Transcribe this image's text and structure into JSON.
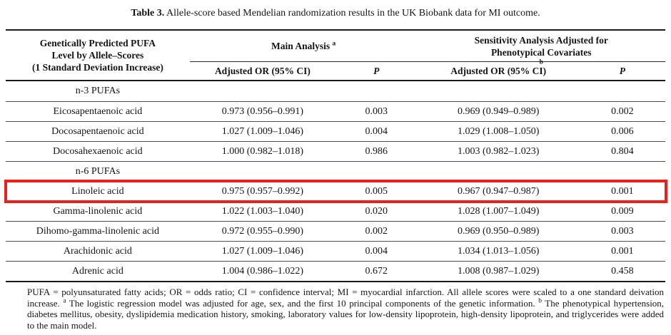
{
  "title": {
    "prefix": "Table 3.",
    "text": "Allele-score based Mendelian randomization results in the UK Biobank data for MI outcome."
  },
  "header": {
    "exposure": "Genetically Predicted PUFA\nLevel by Allele–Scores\n(1 Standard Deviation Increase)",
    "main_group": {
      "label": "Main Analysis",
      "sup": "a"
    },
    "sens_group": {
      "label": "Sensitivity Analysis Adjusted for\nPhenotypical Covariates",
      "sup": "b"
    },
    "or_label": "Adjusted OR (95% CI)",
    "p_label": "P"
  },
  "rows": [
    {
      "type": "section",
      "label": "n-3 PUFAs"
    },
    {
      "type": "data",
      "label": "Eicosapentaenoic acid",
      "or1": "0.973 (0.956–0.991)",
      "p1": "0.003",
      "or2": "0.969 (0.949–0.989)",
      "p2": "0.002"
    },
    {
      "type": "data",
      "label": "Docosapentaenoic acid",
      "or1": "1.027 (1.009–1.046)",
      "p1": "0.004",
      "or2": "1.029 (1.008–1.050)",
      "p2": "0.006"
    },
    {
      "type": "data",
      "label": "Docosahexaenoic acid",
      "or1": "1.000 (0.982–1.018)",
      "p1": "0.986",
      "or2": "1.003 (0.982–1.023)",
      "p2": "0.804"
    },
    {
      "type": "section",
      "label": "n-6 PUFAs"
    },
    {
      "type": "data",
      "label": "Linoleic acid",
      "highlighted": true,
      "or1": "0.975 (0.957–0.992)",
      "p1": "0.005",
      "or2": "0.967 (0.947–0.987)",
      "p2": "0.001"
    },
    {
      "type": "data",
      "label": "Gamma-linolenic acid",
      "or1": "1.022 (1.003–1.040)",
      "p1": "0.020",
      "or2": "1.028 (1.007–1.049)",
      "p2": "0.009"
    },
    {
      "type": "data",
      "label": "Dihomo-gamma-linolenic acid",
      "or1": "0.972 (0.955–0.990)",
      "p1": "0.002",
      "or2": "0.969 (0.950–0.989)",
      "p2": "0.003"
    },
    {
      "type": "data",
      "label": "Arachidonic acid",
      "or1": "1.027 (1.009–1.046)",
      "p1": "0.004",
      "or2": "1.034 (1.013–1.056)",
      "p2": "0.001"
    },
    {
      "type": "data",
      "label": "Adrenic acid",
      "or1": "1.004 (0.986–1.022)",
      "p1": "0.672",
      "or2": "1.008 (0.987–1.029)",
      "p2": "0.458"
    }
  ],
  "footnote": {
    "abbrev": "PUFA = polyunsaturated fatty acids; OR = odds ratio; CI = confidence interval; MI = myocardial infarction. All allele scores were scaled to a one standard deivation increase.",
    "sup_a": "a",
    "note_a": "The logistic regression model was adjusted for age, sex, and the first 10 principal components of the genetic information.",
    "sup_b": "b",
    "note_b": "The phenotypical hypertension, diabetes mellitus, obesity, dyslipidemia medication history, smoking, laboratory values for low-density lipoprotein, high-density lipoprotein, and triglycerides were added to the main model."
  },
  "highlight_color": "#e8211d"
}
